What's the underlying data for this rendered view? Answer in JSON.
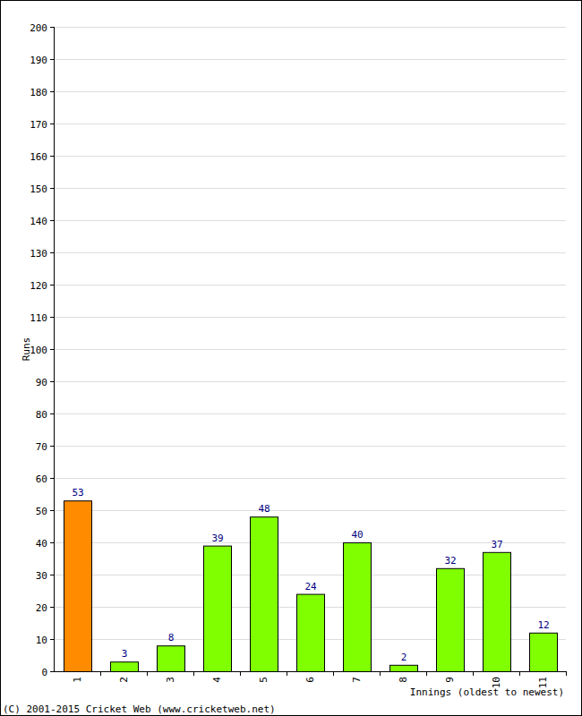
{
  "chart_data": {
    "type": "bar",
    "y_label": "Runs",
    "x_label": "Innings (oldest to newest)",
    "annotations": [
      "(C) 2001-2015 Cricket Web (www.cricketweb.net)"
    ],
    "categories": [
      "1",
      "2",
      "3",
      "4",
      "5",
      "6",
      "7",
      "8",
      "9",
      "10",
      "11"
    ],
    "values": [
      53,
      3,
      8,
      39,
      48,
      24,
      40,
      2,
      32,
      37,
      12
    ],
    "colors": [
      "#ff8c00",
      "#80ff00",
      "#80ff00",
      "#80ff00",
      "#80ff00",
      "#80ff00",
      "#80ff00",
      "#80ff00",
      "#80ff00",
      "#80ff00",
      "#80ff00"
    ],
    "ylim": [
      0,
      200
    ],
    "yticks": [
      0,
      10,
      20,
      30,
      40,
      50,
      60,
      70,
      80,
      90,
      100,
      110,
      120,
      130,
      140,
      150,
      160,
      170,
      180,
      190,
      200
    ],
    "grid": true,
    "data_labels": true
  }
}
